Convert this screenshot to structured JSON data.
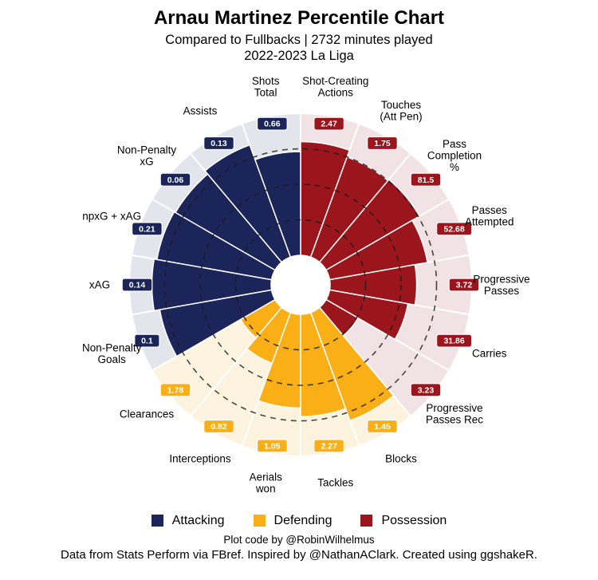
{
  "header": {
    "title": "Arnau Martinez Percentile Chart",
    "subtitle": "Compared to Fullbacks | 2732 minutes played",
    "subtitle2": "2022-2023 La Liga"
  },
  "legend": [
    {
      "label": "Attacking",
      "color": "#1B2559"
    },
    {
      "label": "Defending",
      "color": "#FBAF17"
    },
    {
      "label": "Possession",
      "color": "#9B151D"
    }
  ],
  "footer": {
    "line1": "Plot code by @RobinWilhelmus",
    "line2": "Data from Stats Perform via FBref. Inspired by @NathanAClark. Created using ggshakeR."
  },
  "chart_data": {
    "type": "bar",
    "subtype": "circular-pizza-percentile",
    "scale": {
      "min": 0,
      "max": 100
    },
    "rings_percentiles": [
      25,
      50,
      75
    ],
    "grid": "dashed-rings",
    "legend_position": "bottom",
    "groups": {
      "attacking": {
        "name": "Attacking",
        "color": "#1B2559",
        "bg": "#E3E5ED"
      },
      "defending": {
        "name": "Defending",
        "color": "#FBAF17",
        "bg": "#FCF3DE"
      },
      "possession": {
        "name": "Possession",
        "color": "#9B151D",
        "bg": "#F1E3E5"
      }
    },
    "slices": [
      {
        "label": "Shot-Creating Actions",
        "label_lines": [
          "Shot-Creating",
          "Actions"
        ],
        "group": "possession",
        "value": "2.47",
        "percentile": 80
      },
      {
        "label": "Touches (Att Pen)",
        "label_lines": [
          "Touches",
          "(Att Pen)"
        ],
        "group": "possession",
        "value": "1.75",
        "percentile": 75
      },
      {
        "label": "Pass Completion %",
        "label_lines": [
          "Pass",
          "Completion",
          "%"
        ],
        "group": "possession",
        "value": "81.5",
        "percentile": 76
      },
      {
        "label": "Passes Attempted",
        "label_lines": [
          "Passes",
          "Attempted"
        ],
        "group": "possession",
        "value": "52.68",
        "percentile": 70
      },
      {
        "label": "Progressive Passes",
        "label_lines": [
          "Progressive",
          "Passes"
        ],
        "group": "possession",
        "value": "3.72",
        "percentile": 61
      },
      {
        "label": "Carries",
        "label_lines": [
          "Carries"
        ],
        "group": "possession",
        "value": "31.86",
        "percentile": 56
      },
      {
        "label": "Progressive Passes Rec",
        "label_lines": [
          "Progressive",
          "Passes Rec"
        ],
        "group": "possession",
        "value": "3.23",
        "percentile": 26
      },
      {
        "label": "Blocks",
        "label_lines": [
          "Blocks"
        ],
        "group": "defending",
        "value": "1.45",
        "percentile": 81
      },
      {
        "label": "Tackles",
        "label_lines": [
          "Tackles"
        ],
        "group": "defending",
        "value": "2.27",
        "percentile": 72
      },
      {
        "label": "Aerials won",
        "label_lines": [
          "Aerials",
          "won"
        ],
        "group": "defending",
        "value": "1.05",
        "percentile": 66
      },
      {
        "label": "Interceptions",
        "label_lines": [
          "Interceptions"
        ],
        "group": "defending",
        "value": "0.82",
        "percentile": 38
      },
      {
        "label": "Clearances",
        "label_lines": [
          "Clearances"
        ],
        "group": "defending",
        "value": "1.78",
        "percentile": 28
      },
      {
        "label": "Non-Penalty Goals",
        "label_lines": [
          "Non-Penalty",
          "Goals"
        ],
        "group": "attacking",
        "value": "0.1",
        "percentile": 80
      },
      {
        "label": "xAG",
        "label_lines": [
          "xAG"
        ],
        "group": "attacking",
        "value": "0.14",
        "percentile": 84
      },
      {
        "label": "npxG + xAG",
        "label_lines": [
          "npxG + xAG"
        ],
        "group": "attacking",
        "value": "0.21",
        "percentile": 82
      },
      {
        "label": "Non-Penalty xG",
        "label_lines": [
          "Non-Penalty",
          "xG"
        ],
        "group": "attacking",
        "value": "0.06",
        "percentile": 81
      },
      {
        "label": "Assists",
        "label_lines": [
          "Assists"
        ],
        "group": "attacking",
        "value": "0.13",
        "percentile": 84
      },
      {
        "label": "Shots Total",
        "label_lines": [
          "Shots",
          "Total"
        ],
        "group": "attacking",
        "value": "0.66",
        "percentile": 73
      }
    ]
  }
}
